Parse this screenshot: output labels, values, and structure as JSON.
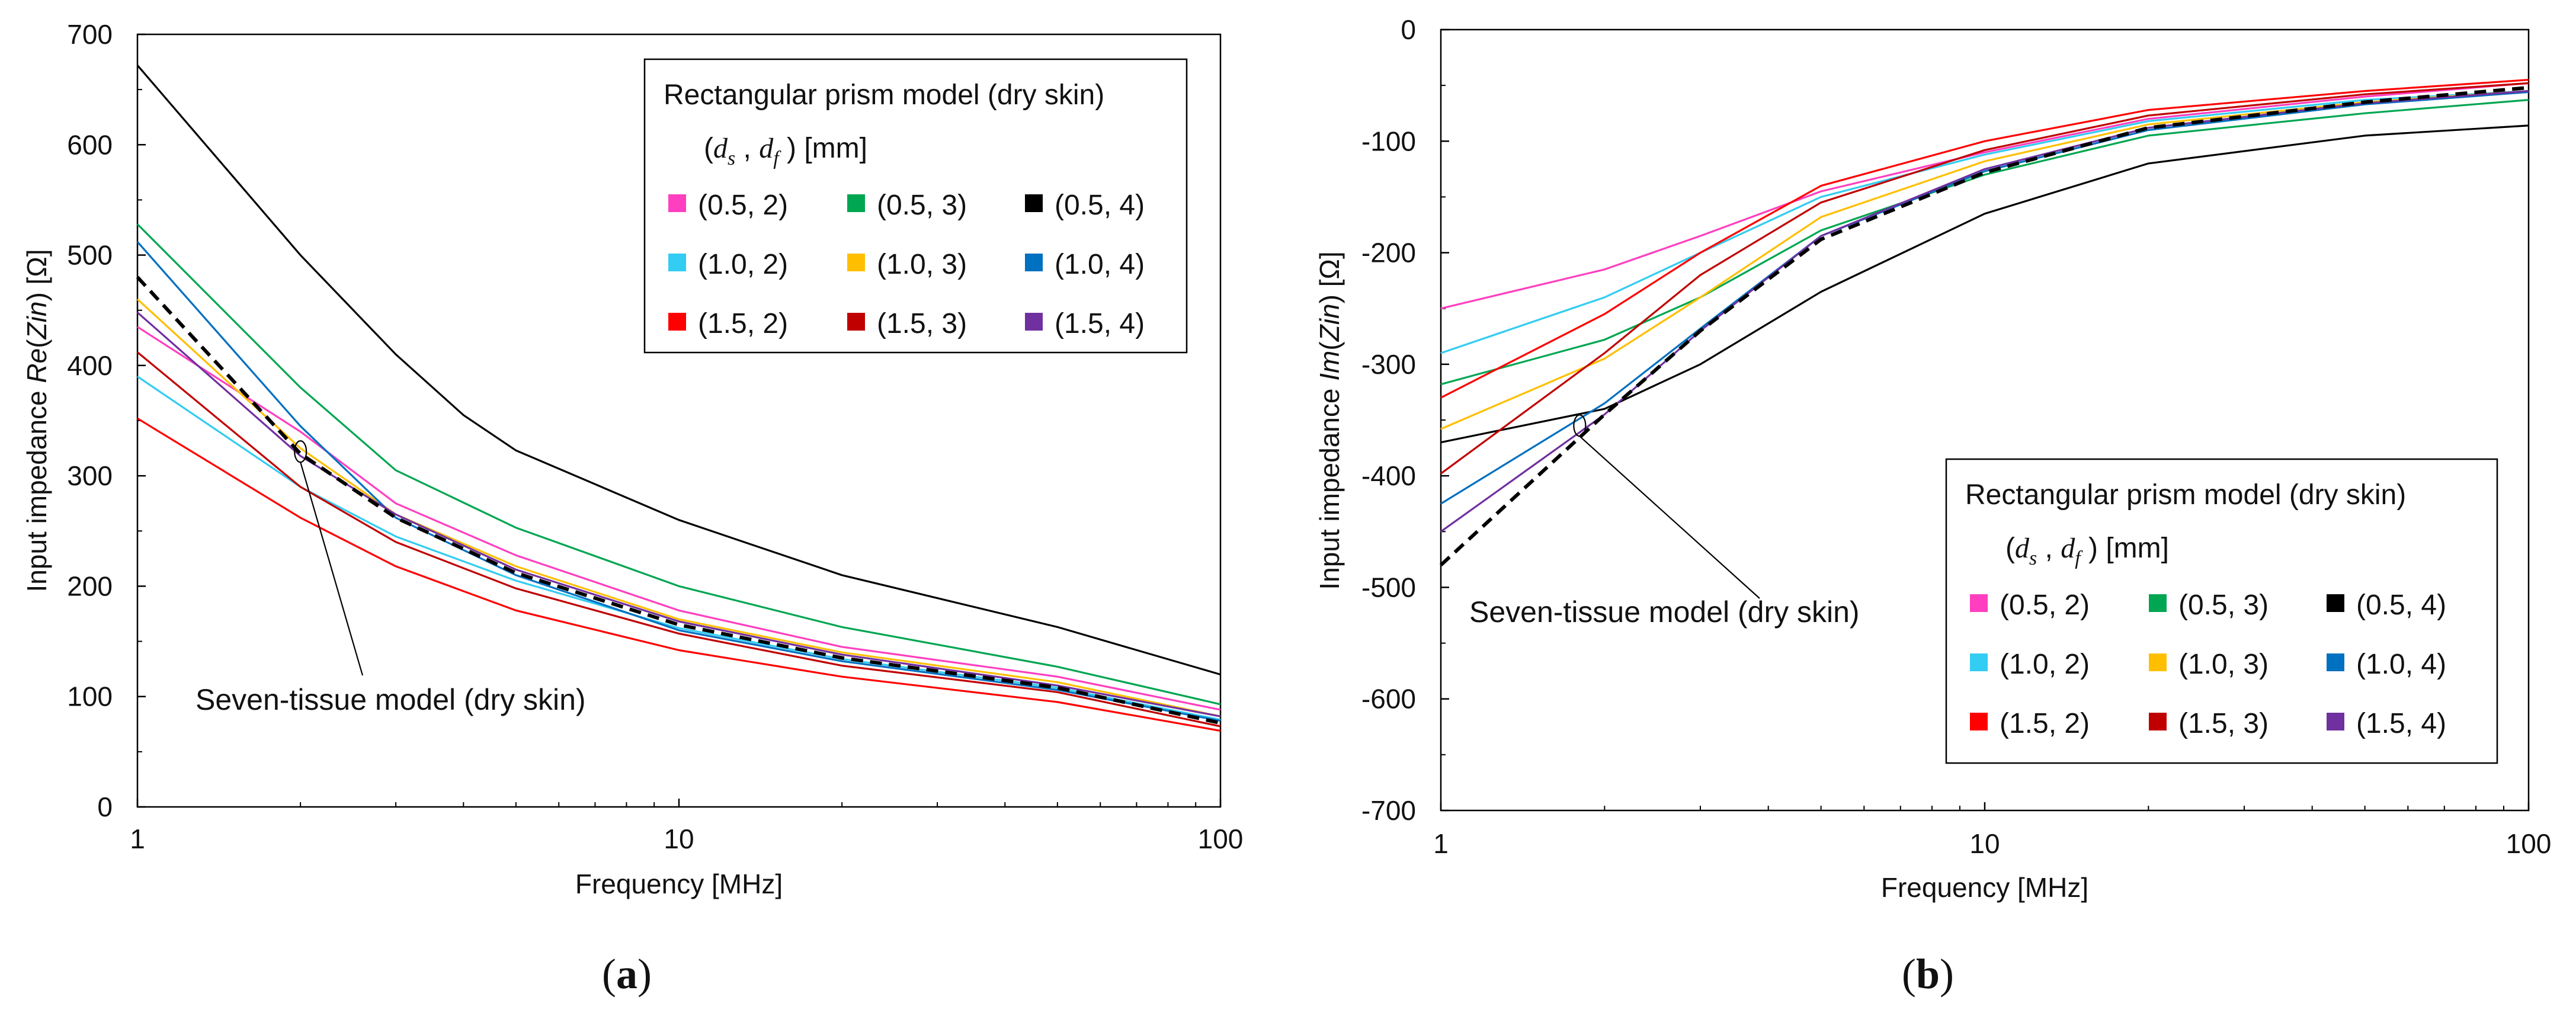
{
  "chart_data": [
    {
      "type": "line",
      "panel_label": "(a)",
      "panel_letter": "a",
      "xscale": "log",
      "xlim": [
        1,
        100
      ],
      "ylim": [
        0,
        700
      ],
      "xticks": [
        "1",
        "10",
        "100"
      ],
      "yticks": [
        "0",
        "100",
        "200",
        "300",
        "400",
        "500",
        "600",
        "700"
      ],
      "xlabel": "Frequency [MHz]",
      "ylabel_prefix": "Input impedance ",
      "ylabel_italic": "Re",
      "ylabel_paren_open": "(",
      "ylabel_italic2": "Zin",
      "ylabel_suffix": ") [Ω]",
      "legend": {
        "title": "Rectangular prism model (dry skin)",
        "subtitle_sym1": "d",
        "subtitle_sub1": "s",
        "subtitle_sym2": "d",
        "subtitle_sub2": "f",
        "subtitle_unit": "[mm]",
        "placement": "top-right"
      },
      "annotation": "Seven-tissue model (dry skin)",
      "series": [
        {
          "name": "(0.5, 2)",
          "color": "#ff3fbf",
          "dash": false,
          "x": [
            1,
            2,
            3,
            5,
            10,
            20,
            50,
            100
          ],
          "y": [
            435,
            340,
            275,
            228,
            178,
            145,
            118,
            88
          ]
        },
        {
          "name": "(0.5, 3)",
          "color": "#00a651",
          "dash": false,
          "x": [
            1,
            2,
            3,
            5,
            10,
            20,
            50,
            100
          ],
          "y": [
            528,
            380,
            305,
            253,
            200,
            163,
            127,
            93
          ]
        },
        {
          "name": "(0.5, 4)",
          "color": "#000000",
          "dash": false,
          "x": [
            1,
            2,
            3,
            4,
            5,
            10,
            20,
            50,
            100
          ],
          "y": [
            672,
            500,
            410,
            355,
            323,
            260,
            210,
            163,
            120
          ]
        },
        {
          "name": "(1.0, 2)",
          "color": "#33ccf2",
          "dash": false,
          "x": [
            1,
            2,
            3,
            5,
            10,
            20,
            50,
            100
          ],
          "y": [
            390,
            290,
            245,
            205,
            162,
            134,
            108,
            79
          ]
        },
        {
          "name": "(1.0, 3)",
          "color": "#ffbf00",
          "dash": false,
          "x": [
            1,
            2,
            3,
            5,
            10,
            20,
            50,
            100
          ],
          "y": [
            460,
            325,
            265,
            218,
            170,
            140,
            113,
            82
          ]
        },
        {
          "name": "(1.0, 4)",
          "color": "#0070c0",
          "dash": false,
          "x": [
            1,
            2,
            3,
            5,
            10,
            20,
            50,
            100
          ],
          "y": [
            512,
            345,
            262,
            210,
            160,
            132,
            106,
            78
          ]
        },
        {
          "name": "(1.5, 2)",
          "color": "#ff0000",
          "dash": false,
          "x": [
            1,
            2,
            3,
            5,
            10,
            20,
            50,
            100
          ],
          "y": [
            352,
            262,
            218,
            178,
            142,
            118,
            95,
            69
          ]
        },
        {
          "name": "(1.5, 3)",
          "color": "#c00000",
          "dash": false,
          "x": [
            1,
            2,
            3,
            5,
            10,
            20,
            50,
            100
          ],
          "y": [
            412,
            290,
            240,
            198,
            157,
            128,
            104,
            73
          ]
        },
        {
          "name": "(1.5, 4)",
          "color": "#7030a0",
          "dash": false,
          "x": [
            1,
            2,
            3,
            5,
            10,
            20,
            50,
            100
          ],
          "y": [
            448,
            318,
            265,
            215,
            168,
            138,
            110,
            82
          ]
        },
        {
          "name": "Seven-tissue model (dry skin)",
          "color": "#000000",
          "dash": true,
          "x": [
            1,
            2,
            3,
            5,
            10,
            20,
            50,
            100
          ],
          "y": [
            480,
            320,
            262,
            212,
            165,
            135,
            108,
            76
          ]
        }
      ]
    },
    {
      "type": "line",
      "panel_label": "(b)",
      "panel_letter": "b",
      "xscale": "log",
      "xlim": [
        1,
        100
      ],
      "ylim": [
        -700,
        0
      ],
      "xticks": [
        "1",
        "10",
        "100"
      ],
      "yticks": [
        "-700",
        "-600",
        "-500",
        "-400",
        "-300",
        "-200",
        "-100",
        "0"
      ],
      "xlabel": "Frequency [MHz]",
      "ylabel_prefix": "Input impedance ",
      "ylabel_italic": "Im",
      "ylabel_paren_open": "(",
      "ylabel_italic2": "Zin",
      "ylabel_suffix": ") [Ω]",
      "legend": {
        "title": "Rectangular prism model (dry skin)",
        "subtitle_sym1": "d",
        "subtitle_sub1": "s",
        "subtitle_sym2": "d",
        "subtitle_sub2": "f",
        "subtitle_unit": "[mm]",
        "placement": "bottom-right"
      },
      "annotation": "Seven-tissue model (dry skin)",
      "series": [
        {
          "name": "(0.5, 2)",
          "color": "#ff3fbf",
          "dash": false,
          "x": [
            1,
            2,
            3,
            5,
            10,
            20,
            50,
            100
          ],
          "y": [
            -250,
            -215,
            -185,
            -145,
            -110,
            -80,
            -60,
            -48
          ]
        },
        {
          "name": "(0.5, 3)",
          "color": "#00a651",
          "dash": false,
          "x": [
            1,
            2,
            3,
            5,
            10,
            20,
            50,
            100
          ],
          "y": [
            -318,
            -278,
            -240,
            -180,
            -130,
            -95,
            -75,
            -63
          ]
        },
        {
          "name": "(0.5, 4)",
          "color": "#000000",
          "dash": false,
          "x": [
            1,
            2,
            3,
            5,
            10,
            20,
            50,
            100
          ],
          "y": [
            -370,
            -340,
            -300,
            -235,
            -165,
            -120,
            -95,
            -86
          ]
        },
        {
          "name": "(1.0, 2)",
          "color": "#33ccf2",
          "dash": false,
          "x": [
            1,
            2,
            3,
            5,
            10,
            20,
            50,
            100
          ],
          "y": [
            -290,
            -240,
            -200,
            -150,
            -112,
            -82,
            -63,
            -55
          ]
        },
        {
          "name": "(1.0, 3)",
          "color": "#ffbf00",
          "dash": false,
          "x": [
            1,
            2,
            3,
            5,
            10,
            20,
            50,
            100
          ],
          "y": [
            -358,
            -295,
            -240,
            -168,
            -118,
            -85,
            -65,
            -55
          ]
        },
        {
          "name": "(1.0, 4)",
          "color": "#0070c0",
          "dash": false,
          "x": [
            1,
            2,
            3,
            5,
            10,
            20,
            50,
            100
          ],
          "y": [
            -425,
            -335,
            -268,
            -185,
            -127,
            -90,
            -67,
            -56
          ]
        },
        {
          "name": "(1.5, 2)",
          "color": "#ff0000",
          "dash": false,
          "x": [
            1,
            2,
            3,
            5,
            10,
            20,
            50,
            100
          ],
          "y": [
            -330,
            -255,
            -200,
            -140,
            -100,
            -72,
            -55,
            -45
          ]
        },
        {
          "name": "(1.5, 3)",
          "color": "#c00000",
          "dash": false,
          "x": [
            1,
            2,
            3,
            5,
            10,
            20,
            50,
            100
          ],
          "y": [
            -398,
            -290,
            -220,
            -155,
            -108,
            -77,
            -58,
            -48
          ]
        },
        {
          "name": "(1.5, 4)",
          "color": "#7030a0",
          "dash": false,
          "x": [
            1,
            2,
            3,
            5,
            10,
            20,
            50,
            100
          ],
          "y": [
            -450,
            -345,
            -270,
            -185,
            -125,
            -88,
            -66,
            -55
          ]
        },
        {
          "name": "Seven-tissue model (dry skin)",
          "color": "#000000",
          "dash": true,
          "x": [
            1,
            2,
            3,
            5,
            10,
            20,
            50,
            100
          ],
          "y": [
            -480,
            -345,
            -270,
            -188,
            -128,
            -88,
            -65,
            -52
          ]
        }
      ]
    }
  ]
}
